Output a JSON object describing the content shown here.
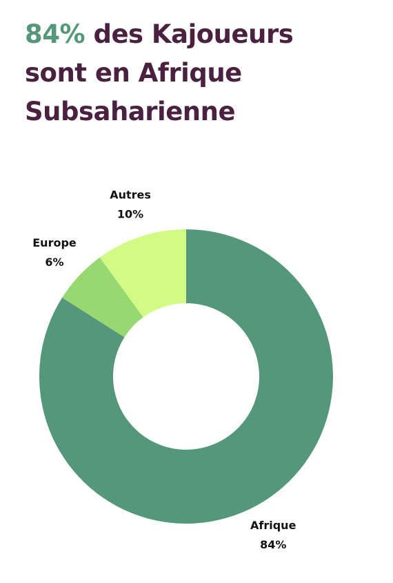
{
  "chart_data": {
    "type": "donut",
    "title_highlight": "84%",
    "title": "des Kajoueurs sont en Afrique Subsaharienne",
    "categories": [
      "Afrique",
      "Europe",
      "Autres"
    ],
    "values": [
      84,
      6,
      10
    ],
    "value_labels": [
      "84%",
      "6%",
      "10%"
    ],
    "colors": [
      "#55977a",
      "#97d870",
      "#d2fb85"
    ]
  }
}
